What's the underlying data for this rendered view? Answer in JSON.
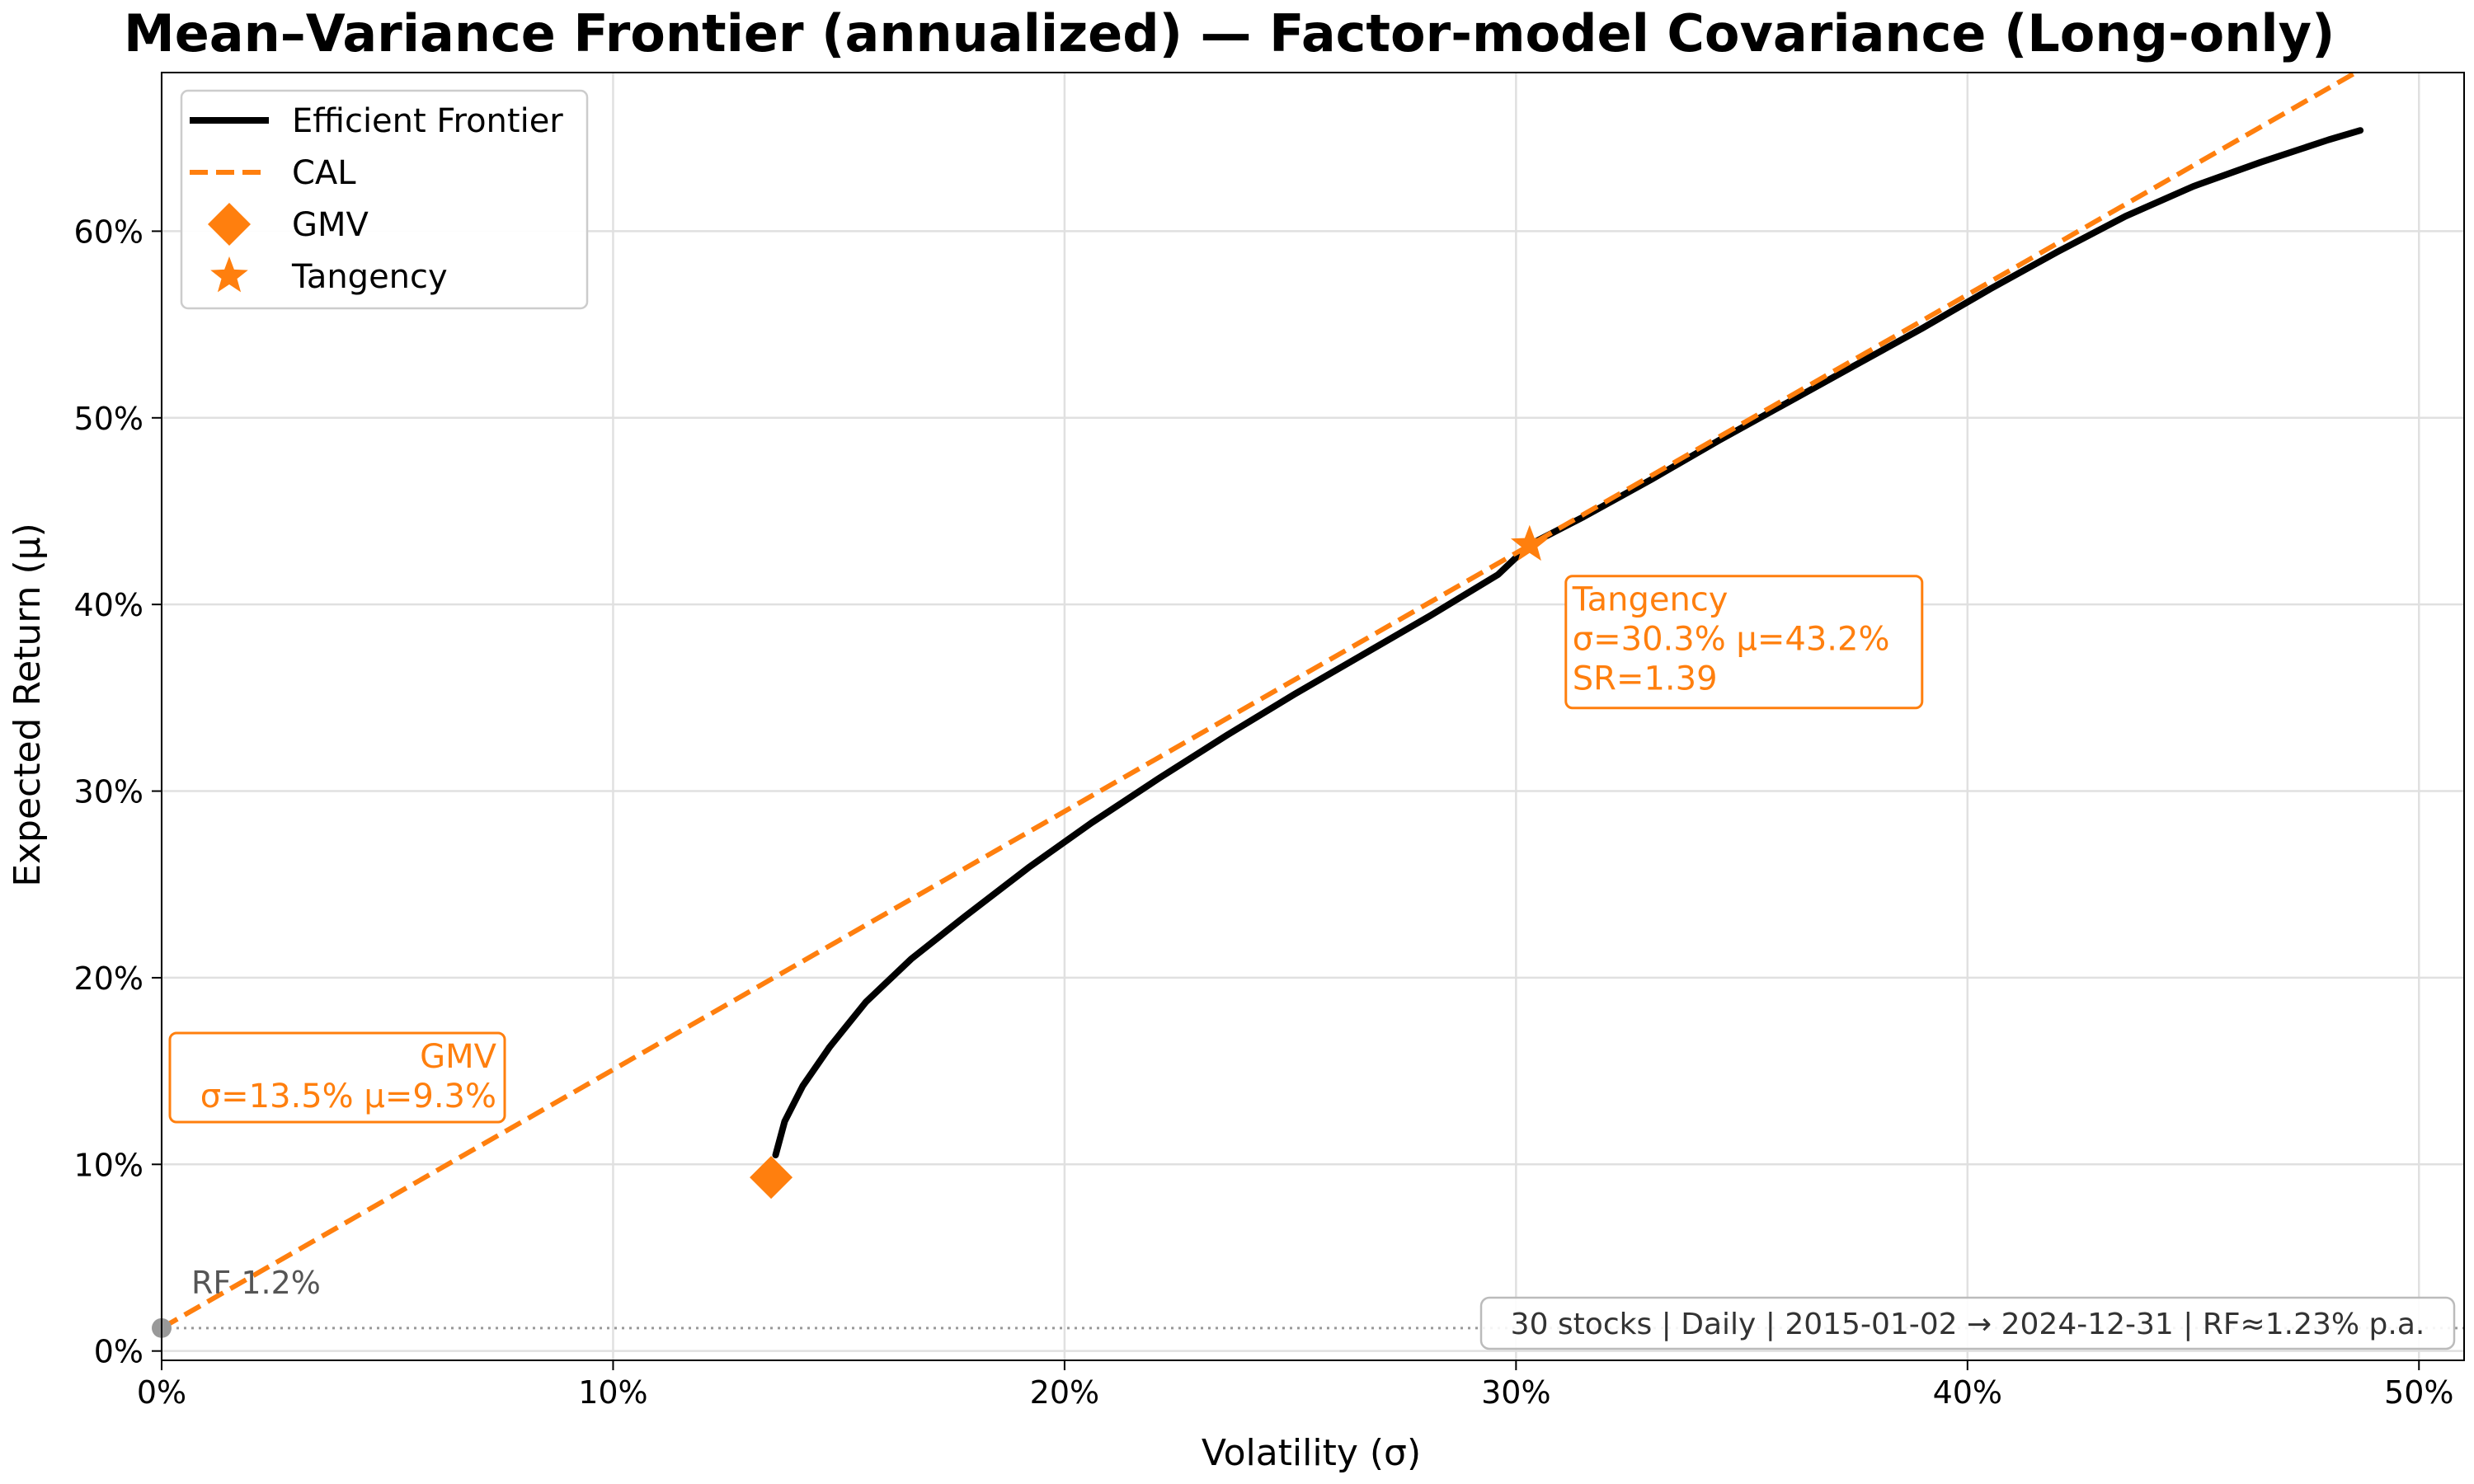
{
  "chart_data": {
    "type": "line",
    "title": "Mean–Variance Frontier (annualized) — Factor-model Covariance (Long-only)",
    "xlabel": "Volatility (σ)",
    "ylabel": "Expected Return (μ)",
    "xlim": [
      0,
      51
    ],
    "ylim": [
      -0.5,
      68.5
    ],
    "x_ticks": [
      0,
      10,
      20,
      30,
      40,
      50
    ],
    "x_tick_labels": [
      "0%",
      "10%",
      "20%",
      "30%",
      "40%",
      "50%"
    ],
    "y_ticks": [
      0,
      10,
      20,
      30,
      40,
      50,
      60
    ],
    "y_tick_labels": [
      "0%",
      "10%",
      "20%",
      "30%",
      "40%",
      "50%",
      "60%"
    ],
    "grid": true,
    "legend": {
      "placement": "upper-left",
      "entries": [
        {
          "label": "Efficient Frontier",
          "color": "#000000",
          "style": "solid-line"
        },
        {
          "label": "CAL",
          "color": "#ff7f0e",
          "style": "dashed-line"
        },
        {
          "label": "GMV",
          "color": "#ff7f0e",
          "style": "diamond-marker"
        },
        {
          "label": "Tangency",
          "color": "#ff7f0e",
          "style": "star-marker"
        }
      ]
    },
    "series": [
      {
        "name": "Efficient Frontier",
        "color": "#000000",
        "x": [
          13.6,
          13.8,
          14.2,
          14.8,
          15.6,
          16.6,
          17.8,
          19.2,
          20.6,
          22.1,
          23.6,
          25.1,
          26.6,
          28.1,
          29.6,
          30.3,
          31.5,
          33.0,
          34.5,
          36.0,
          37.5,
          39.0,
          40.5,
          42.0,
          43.5,
          45.0,
          46.5,
          48.0,
          48.7
        ],
        "y": [
          10.5,
          12.3,
          14.2,
          16.3,
          18.7,
          21.0,
          23.3,
          25.9,
          28.3,
          30.7,
          33.0,
          35.2,
          37.3,
          39.4,
          41.6,
          43.2,
          44.7,
          46.7,
          48.8,
          50.8,
          52.8,
          54.8,
          56.9,
          58.9,
          60.8,
          62.4,
          63.7,
          64.9,
          65.4
        ]
      },
      {
        "name": "CAL",
        "color": "#ff7f0e",
        "x": [
          0,
          48.6
        ],
        "y": [
          1.23,
          68.5
        ]
      }
    ],
    "points": {
      "gmv": {
        "label": "GMV",
        "x": 13.5,
        "y": 9.3,
        "color": "#ff7f0e"
      },
      "tangency": {
        "label": "Tangency",
        "x": 30.3,
        "y": 43.2,
        "color": "#ff7f0e"
      },
      "rf": {
        "label": "RF 1.2%",
        "x": 0,
        "y": 1.23,
        "color": "#999999"
      }
    },
    "annotations": {
      "tangency": [
        "Tangency",
        "σ=30.3%  μ=43.2%",
        "SR=1.39"
      ],
      "gmv": [
        "GMV",
        "σ=13.5%  μ=9.3%"
      ],
      "rf_label": "RF 1.2%",
      "footnote": "30 stocks | Daily | 2015-01-02 → 2024-12-31 | RF≈1.23% p.a."
    },
    "colors": {
      "accent": "#ff7f0e",
      "frontier": "#000000",
      "grid": "#e0e0e0",
      "rf_line": "#999999"
    }
  }
}
